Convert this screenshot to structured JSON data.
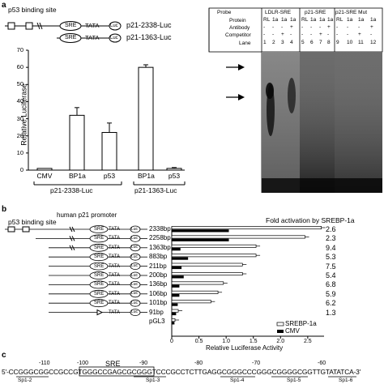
{
  "panel_a": {
    "label": "a",
    "p53_site": "p53 binding site",
    "construct_1": "p21-2338-Luc",
    "construct_2": "p21-1363-Luc",
    "sre": "SRE",
    "tata": "TATA",
    "luc": "Luc",
    "ylabel": "Relative Luciferase",
    "yticks": [
      "0",
      "10",
      "20",
      "30",
      "40",
      "50",
      "60",
      "70"
    ],
    "group_1": "p21-2338-Luc",
    "group_2": "p21-1363-Luc"
  },
  "panel_gel": {
    "header_probe": "Probe",
    "header_protein": "Protein",
    "header_antibody": "Antibody",
    "header_competitor": "Competitor",
    "header_lane": "Lane",
    "probe_1": "LDLR-SRE",
    "probe_2": "p21-SRE",
    "probe_3": "p21-SRE Mut",
    "protein_row": [
      "RL",
      "1a",
      "1a",
      "1a",
      "RL",
      "1a",
      "1a",
      "1a",
      "RL",
      "1a",
      "1a",
      "1a"
    ],
    "antibody_row": [
      "-",
      "-",
      "-",
      "+",
      "-",
      "-",
      "-",
      "+",
      "-",
      "-",
      "-",
      "+"
    ],
    "competitor_row": [
      "-",
      "-",
      "+",
      "-",
      "-",
      "-",
      "+",
      "-",
      "-",
      "-",
      "+",
      "-"
    ],
    "lane_row": [
      "1",
      "2",
      "3",
      "4",
      "5",
      "6",
      "7",
      "8",
      "9",
      "10",
      "11",
      "12"
    ]
  },
  "panel_b": {
    "label": "b",
    "p53_site": "p53 binding site",
    "promoter_title": "human p21 promoter",
    "fold_title": "Fold activation by SREBP-1a",
    "xlabel": "Relative Luciferase Activity",
    "xticks": [
      "0",
      "0.5",
      "1.0",
      "1.5",
      "2.0",
      "2.5"
    ],
    "legend_1": "SREBP-1a",
    "legend_2": "CMV",
    "sre": "SRE",
    "tata": "TATA",
    "luc": "Luc",
    "constructs": [
      "2338bp",
      "2258bp",
      "1363bp",
      "883bp",
      "211bp",
      "200bp",
      "136bp",
      "106bp",
      "101bp",
      "91bp",
      "pGL3"
    ],
    "fold": [
      "2.6",
      "2.3",
      "9.4",
      "5.3",
      "7.5",
      "5.4",
      "6.8",
      "5.9",
      "6.2",
      "1.3",
      ""
    ]
  },
  "panel_c": {
    "label": "c",
    "pos_1": "-110",
    "pos_2": "-100",
    "pos_3": "-90",
    "pos_4": "-80",
    "pos_5": "-70",
    "pos_6": "-60",
    "sre": "SRE",
    "sequence": "5'-CCGGGCGGCCGCCGTGGGCCGAGCGCGGGTCCCGCCTCTTGAGGCGGGCCCGGGCGGGGCGGTTGTATATCA-3'",
    "sp_sites": [
      "Sp1-2",
      "Sp1-3",
      "Sp1-4",
      "Sp1-5",
      "Sp1-6"
    ]
  },
  "chart_data": [
    {
      "type": "bar",
      "categories": [
        "CMV",
        "BP1a",
        "p53",
        "BP1a",
        "p53"
      ],
      "groups": [
        "p21-2338-Luc",
        "p21-2338-Luc",
        "p21-2338-Luc",
        "p21-1363-Luc",
        "p21-1363-Luc"
      ],
      "values": [
        1,
        32,
        22,
        60,
        1
      ],
      "errors": [
        0,
        4.5,
        5.5,
        1.5,
        0.5
      ],
      "ylabel": "Relative Luciferase",
      "ylim": [
        0,
        70
      ]
    },
    {
      "type": "bar",
      "orientation": "horizontal",
      "categories": [
        "2338bp",
        "2258bp",
        "1363bp",
        "883bp",
        "211bp",
        "200bp",
        "136bp",
        "106bp",
        "101bp",
        "91bp",
        "pGL3"
      ],
      "series": [
        {
          "name": "SREBP-1a",
          "values": [
            2.75,
            2.45,
            1.55,
            1.55,
            1.3,
            1.3,
            0.95,
            0.85,
            0.72,
            0.12,
            0.06
          ]
        },
        {
          "name": "CMV",
          "values": [
            1.05,
            1.05,
            0.16,
            0.3,
            0.18,
            0.22,
            0.14,
            0.14,
            0.11,
            0.08,
            0.05
          ]
        }
      ],
      "xlabel": "Relative Luciferase Activity",
      "xlim": [
        0,
        2.8
      ],
      "fold_activation": [
        2.6,
        2.3,
        9.4,
        5.3,
        7.5,
        5.4,
        6.8,
        5.9,
        6.2,
        1.3,
        null
      ]
    }
  ]
}
